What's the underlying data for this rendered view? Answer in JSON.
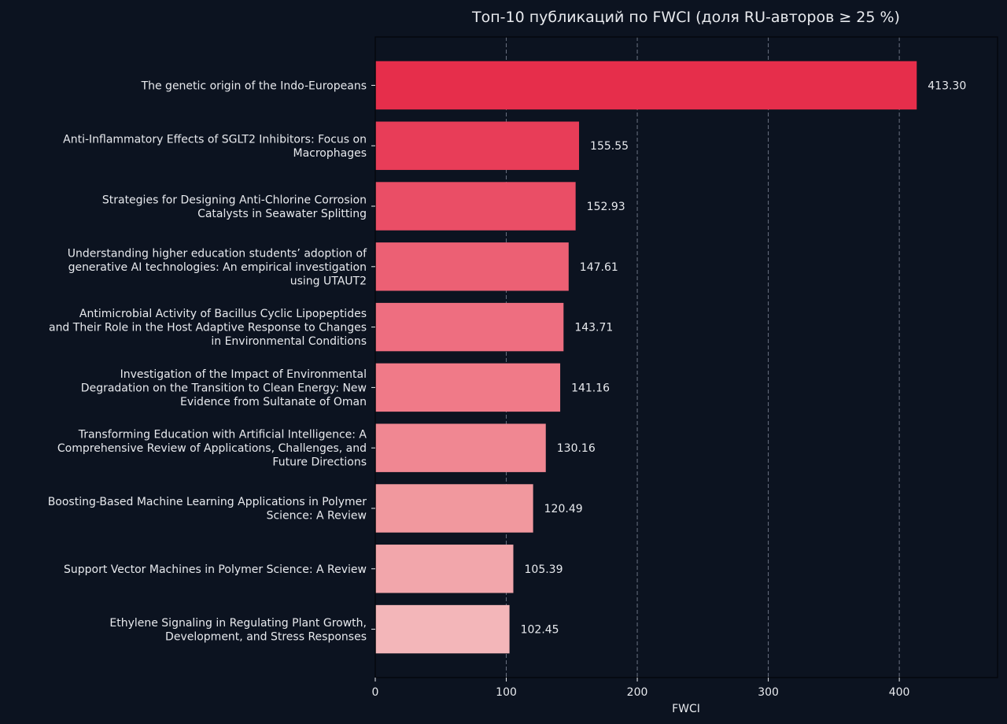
{
  "chart_data": {
    "type": "bar",
    "orientation": "horizontal",
    "title": "Топ-10 публикаций по FWCI (доля RU-авторов ≥ 25 %)",
    "xlabel": "FWCI",
    "ylabel": "",
    "xlim": [
      0,
      475
    ],
    "xticks": [
      0,
      100,
      200,
      300,
      400
    ],
    "xtick_labels": [
      "0",
      "100",
      "200",
      "300",
      "400"
    ],
    "grid": "x-dashed",
    "categories": [
      [
        "The genetic origin of the Indo-Europeans"
      ],
      [
        "Anti-Inflammatory Effects of SGLT2 Inhibitors: Focus on",
        "Macrophages"
      ],
      [
        "Strategies for Designing Anti-Chlorine Corrosion",
        "Catalysts in Seawater Splitting"
      ],
      [
        "Understanding higher education students’ adoption of",
        "generative AI technologies: An empirical investigation",
        "using UTAUT2"
      ],
      [
        "Antimicrobial Activity of Bacillus Cyclic Lipopeptides",
        "and Their Role in the Host Adaptive Response to Changes",
        "in Environmental Conditions"
      ],
      [
        "Investigation of the Impact of Environmental",
        "Degradation on the Transition to Clean Energy: New",
        "Evidence from Sultanate of Oman"
      ],
      [
        "Transforming Education with Artificial Intelligence: A",
        "Comprehensive Review of Applications, Challenges, and",
        "Future Directions"
      ],
      [
        "Boosting-Based Machine Learning Applications in Polymer",
        "Science: A Review"
      ],
      [
        "Support Vector Machines in Polymer Science: A Review"
      ],
      [
        "Ethylene Signaling in Regulating Plant Growth,",
        "Development, and Stress Responses"
      ]
    ],
    "values": [
      413.3,
      155.55,
      152.93,
      147.61,
      143.71,
      141.16,
      130.16,
      120.49,
      105.39,
      102.45
    ],
    "value_labels": [
      "413.30",
      "155.55",
      "152.93",
      "147.61",
      "143.71",
      "141.16",
      "130.16",
      "120.49",
      "105.39",
      "102.45"
    ],
    "colors": [
      "#e62e4b",
      "#e83d58",
      "#ea4e66",
      "#ec6074",
      "#ee6e80",
      "#f07a88",
      "#f08792",
      "#f1989e",
      "#f2a6ab",
      "#f3b6b9"
    ]
  },
  "theme": {
    "background": "#0c1320",
    "text": "#e8eaee",
    "frame": "#05080d",
    "grid": "#6b7282"
  }
}
